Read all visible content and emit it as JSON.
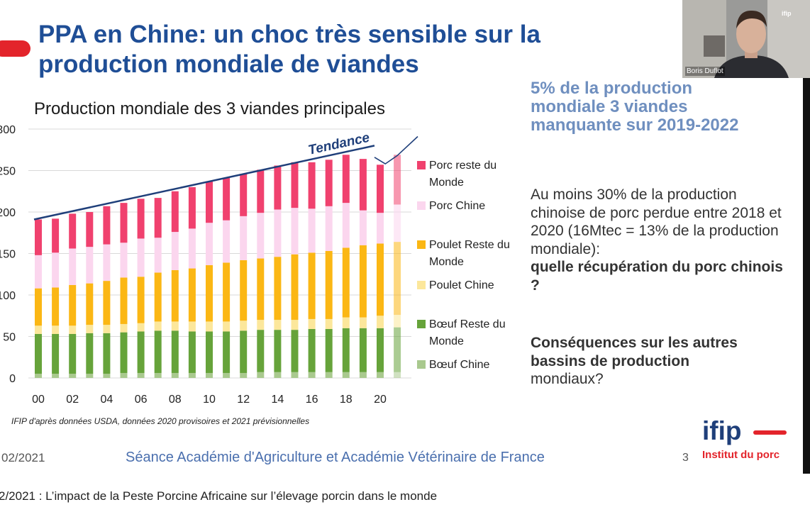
{
  "slide": {
    "title": "PPA en Chine: un choc très sensible sur la production mondiale de viandes",
    "chart_title": "Production mondiale des 3 viandes principales",
    "source_note": "IFIP d'après données USDA, données 2020 provisoires et 2021 prévisionnelles",
    "right_text": {
      "headline": "5% de la production mondiale 3 viandes manquante sur 2019-2022",
      "para1_plain": "Au moins 30% de la production chinoise de porc perdue entre 2018 et 2020 (16Mtec = 13% de la production mondiale):",
      "para1_bold": "quelle récupération du porc chinois ?",
      "para2_bold": "Conséquences sur les autres bassins de production",
      "para2_plain": "mondiaux?"
    },
    "footer": {
      "date": "02/2021",
      "center": "Séance Académie d'Agriculture et Académie Vétérinaire de France",
      "page": "3"
    },
    "logo": {
      "word": "ifip",
      "subtitle": "Institut du porc"
    }
  },
  "webcam": {
    "name": "Boris Duflot",
    "logo": "ifip"
  },
  "caption": "2/2021 : L’impact de la Peste Porcine Africaine sur l’élevage porcin dans le monde",
  "colors": {
    "title_blue": "#1f4e96",
    "accent_red": "#e3242b",
    "porc_rdm": "#f0416e",
    "porc_chine": "#fbd6ee",
    "poulet_rdm": "#fbb714",
    "poulet_chine": "#fce79b",
    "boeuf_rdm": "#66a33a",
    "boeuf_chine": "#a9c98e"
  },
  "chart_data": {
    "type": "bar",
    "stacked": true,
    "title": "Production mondiale des 3 viandes principales",
    "x_tick_labels": [
      "00",
      "02",
      "04",
      "06",
      "08",
      "10",
      "12",
      "14",
      "16",
      "18",
      "20"
    ],
    "years": [
      2000,
      2001,
      2002,
      2003,
      2004,
      2005,
      2006,
      2007,
      2008,
      2009,
      2010,
      2011,
      2012,
      2013,
      2014,
      2015,
      2016,
      2017,
      2018,
      2019,
      2020,
      2021
    ],
    "y_tick_labels": [
      "0",
      "50",
      "100",
      "150",
      "200",
      "250",
      "300"
    ],
    "ylim": [
      0,
      300
    ],
    "grid": true,
    "legend_position": "right",
    "series": [
      {
        "name": "Bœuf Chine",
        "color": "#a9c98e",
        "values": [
          5,
          5,
          5,
          5,
          5,
          6,
          6,
          6,
          6,
          6,
          6,
          6,
          6,
          7,
          7,
          7,
          7,
          7,
          7,
          7,
          7,
          7
        ]
      },
      {
        "name": "Bœuf Reste du Monde",
        "color": "#66a33a",
        "values": [
          48,
          48,
          48,
          49,
          49,
          49,
          50,
          51,
          51,
          50,
          50,
          50,
          51,
          51,
          51,
          51,
          52,
          52,
          53,
          53,
          53,
          54
        ]
      },
      {
        "name": "Poulet Chine",
        "color": "#fce79b",
        "values": [
          10,
          10,
          10,
          10,
          10,
          10,
          10,
          11,
          11,
          12,
          12,
          12,
          12,
          12,
          12,
          12,
          12,
          12,
          13,
          13,
          15,
          15
        ]
      },
      {
        "name": "Poulet Reste du Monde",
        "color": "#fbb714",
        "values": [
          45,
          46,
          49,
          50,
          53,
          56,
          56,
          59,
          62,
          64,
          68,
          71,
          73,
          74,
          76,
          79,
          80,
          82,
          84,
          87,
          87,
          88
        ]
      },
      {
        "name": "Porc Chine",
        "color": "#fbd6ee",
        "values": [
          40,
          42,
          44,
          44,
          44,
          42,
          46,
          42,
          46,
          48,
          51,
          51,
          53,
          55,
          57,
          56,
          53,
          54,
          54,
          42,
          37,
          45
        ]
      },
      {
        "name": "Porc reste du Monde",
        "color": "#f0416e",
        "values": [
          43,
          41,
          42,
          42,
          46,
          48,
          48,
          48,
          49,
          50,
          50,
          51,
          51,
          52,
          53,
          55,
          56,
          56,
          58,
          62,
          58,
          60
        ]
      }
    ],
    "trend_label": "Tendance",
    "trend_line": {
      "x": [
        2000,
        2019.5
      ],
      "y": [
        191,
        280
      ]
    },
    "outlook_curve": {
      "x": [
        2019.5,
        2020.3,
        2021,
        2022.2
      ],
      "y": [
        266,
        258,
        268,
        291
      ]
    }
  }
}
